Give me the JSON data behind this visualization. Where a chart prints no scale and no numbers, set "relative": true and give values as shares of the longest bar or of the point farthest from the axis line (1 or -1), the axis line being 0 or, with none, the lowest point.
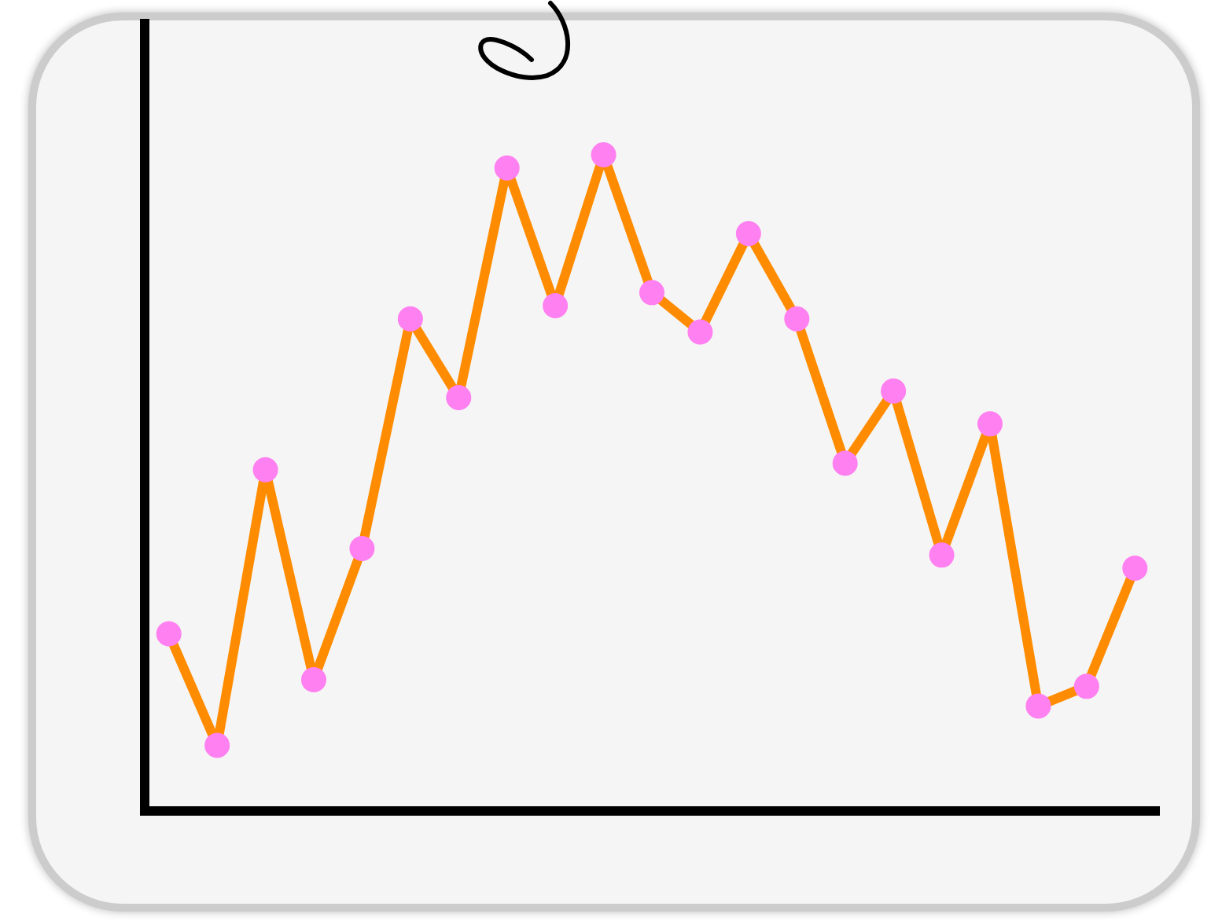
{
  "chart_data": {
    "type": "line",
    "relative": true,
    "categories": [
      null,
      null,
      null,
      null,
      null,
      null,
      null,
      null,
      null,
      null,
      null,
      null,
      null,
      null,
      null,
      null,
      null,
      null,
      null,
      null,
      null
    ],
    "series": [
      {
        "color": "#ff8c00",
        "values": [
          0.27,
          0.1,
          0.52,
          0.2,
          0.4,
          0.75,
          0.63,
          0.98,
          0.77,
          1.0,
          0.79,
          0.73,
          0.88,
          0.75,
          0.53,
          0.64,
          0.39,
          0.59,
          0.16,
          0.19,
          0.37
        ]
      }
    ],
    "marker": "circle",
    "line_style": "solid",
    "grid": false,
    "legend": false
  }
}
